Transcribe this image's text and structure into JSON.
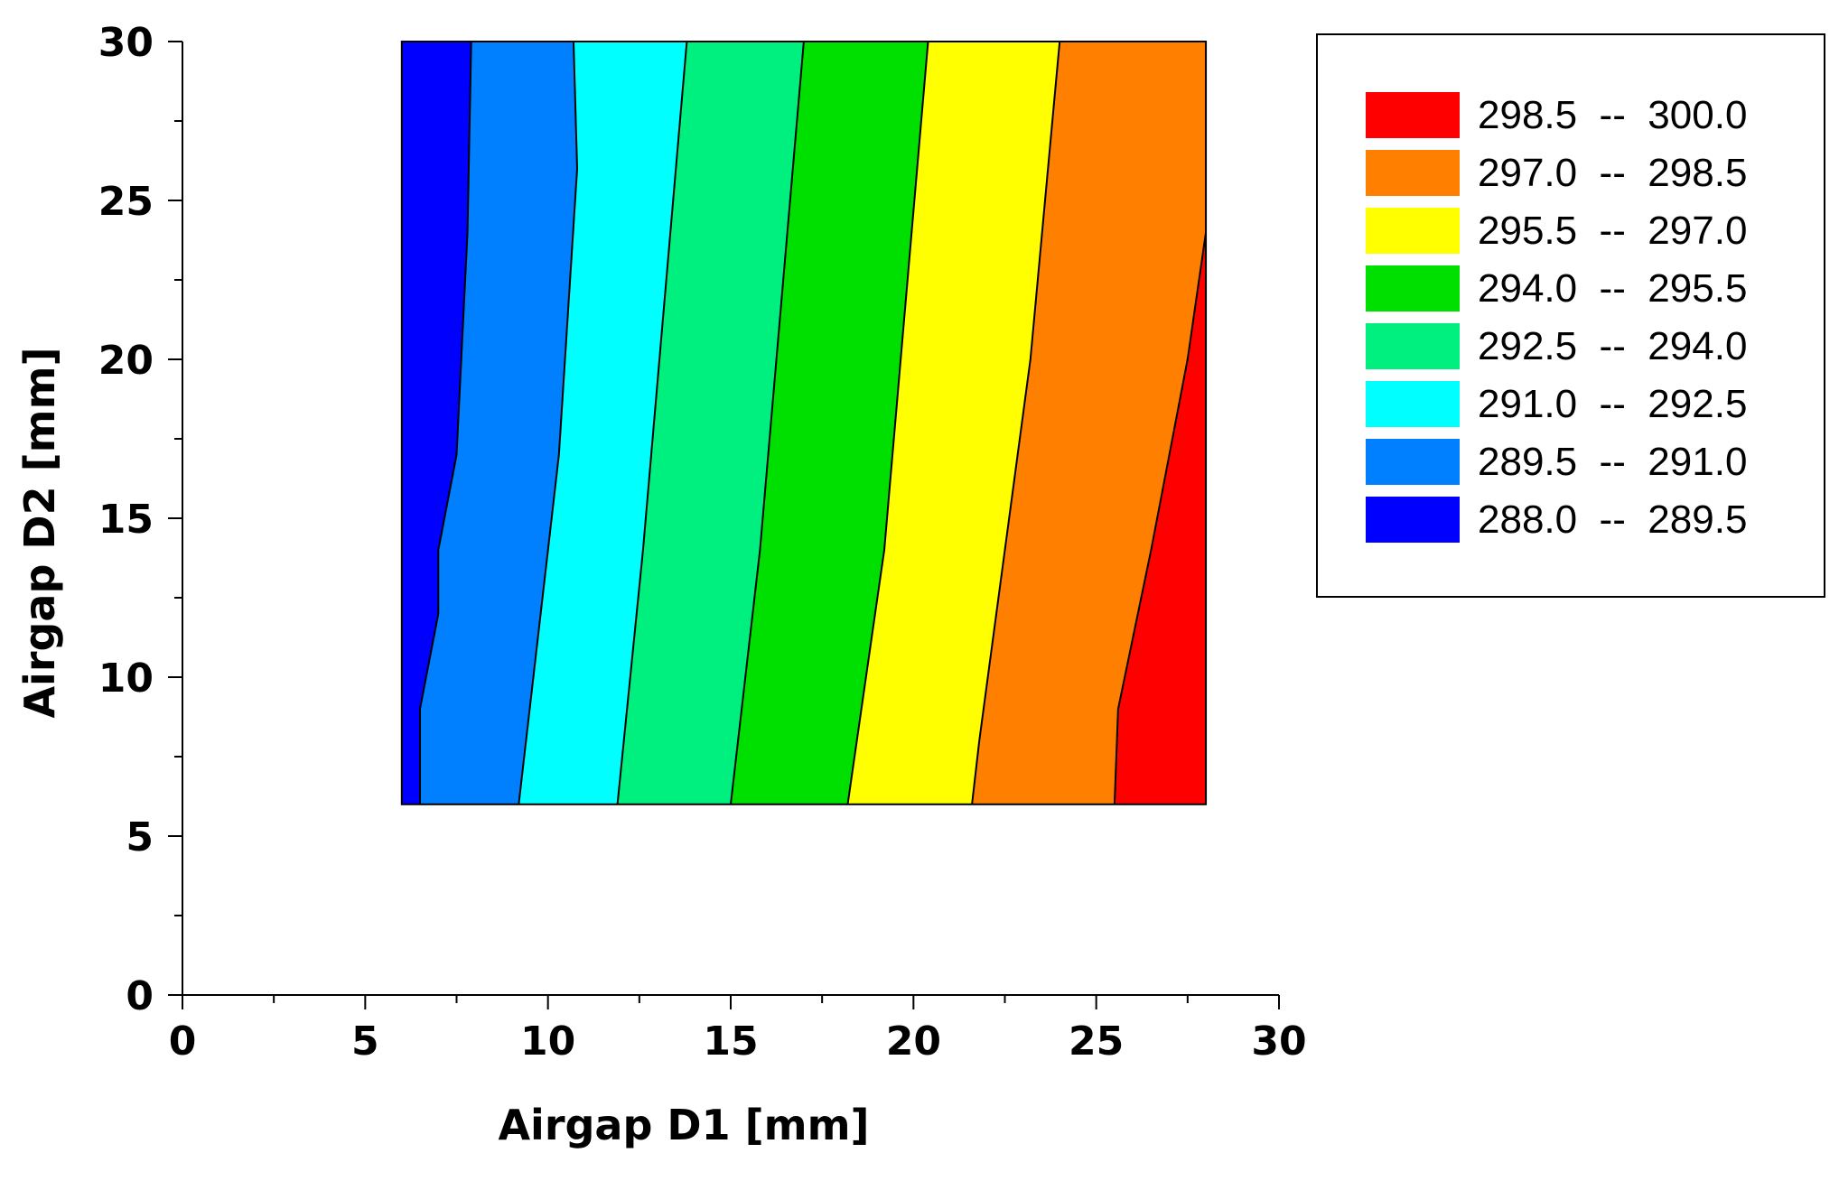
{
  "chart_data": {
    "type": "contour",
    "xlabel": "Airgap D1 [mm]",
    "ylabel": "Airgap D2 [mm]",
    "xlim": [
      0,
      30
    ],
    "ylim": [
      0,
      30
    ],
    "x_ticks": [
      0,
      5,
      10,
      15,
      20,
      25,
      30
    ],
    "y_ticks": [
      0,
      5,
      10,
      15,
      20,
      25,
      30
    ],
    "x_tick_labels": [
      "0",
      "5",
      "10",
      "15",
      "20",
      "25",
      "30"
    ],
    "y_tick_labels": [
      "0",
      "5",
      "10",
      "15",
      "20",
      "25",
      "30"
    ],
    "data_domain": {
      "x": [
        6,
        28
      ],
      "y": [
        6,
        30
      ]
    },
    "legend_position": "top-right",
    "levels": [
      {
        "low": 298.5,
        "high": 300.0,
        "label": "298.5  --  300.0",
        "color": "#ff0000"
      },
      {
        "low": 297.0,
        "high": 298.5,
        "label": "297.0  --  298.5",
        "color": "#ff8000"
      },
      {
        "low": 295.5,
        "high": 297.0,
        "label": "295.5  --  297.0",
        "color": "#ffff00"
      },
      {
        "low": 294.0,
        "high": 295.5,
        "label": "294.0  --  295.5",
        "color": "#00e000"
      },
      {
        "low": 292.5,
        "high": 294.0,
        "label": "292.5  --  294.0",
        "color": "#00f080"
      },
      {
        "low": 291.0,
        "high": 292.5,
        "label": "291.0  --  292.5",
        "color": "#00ffff"
      },
      {
        "low": 289.5,
        "high": 291.0,
        "label": "289.5  --  291.0",
        "color": "#0080ff"
      },
      {
        "low": 288.0,
        "high": 289.5,
        "label": "288.0  --  289.5",
        "color": "#0000ff"
      }
    ],
    "contour_lines": [
      {
        "value": 289.5,
        "points": [
          [
            6.5,
            6
          ],
          [
            6.5,
            9
          ],
          [
            7.0,
            12
          ],
          [
            7.0,
            14
          ],
          [
            7.5,
            17
          ],
          [
            7.8,
            24
          ],
          [
            7.9,
            30
          ]
        ]
      },
      {
        "value": 291.0,
        "points": [
          [
            9.2,
            6
          ],
          [
            10.0,
            14
          ],
          [
            10.3,
            17
          ],
          [
            10.8,
            26
          ],
          [
            10.7,
            30
          ]
        ]
      },
      {
        "value": 292.5,
        "points": [
          [
            11.9,
            6
          ],
          [
            12.6,
            14
          ],
          [
            13.8,
            30
          ]
        ]
      },
      {
        "value": 294.0,
        "points": [
          [
            15.0,
            6
          ],
          [
            15.8,
            14
          ],
          [
            17.0,
            30
          ]
        ]
      },
      {
        "value": 295.5,
        "points": [
          [
            18.2,
            6
          ],
          [
            19.2,
            14
          ],
          [
            20.4,
            30
          ]
        ]
      },
      {
        "value": 297.0,
        "points": [
          [
            21.6,
            6
          ],
          [
            21.8,
            8
          ],
          [
            22.5,
            14
          ],
          [
            23.2,
            20
          ],
          [
            24.0,
            30
          ]
        ]
      },
      {
        "value": 298.5,
        "points": [
          [
            25.5,
            6
          ],
          [
            25.6,
            9
          ],
          [
            26.5,
            14
          ],
          [
            27.5,
            20
          ],
          [
            28.0,
            24
          ]
        ]
      }
    ]
  }
}
